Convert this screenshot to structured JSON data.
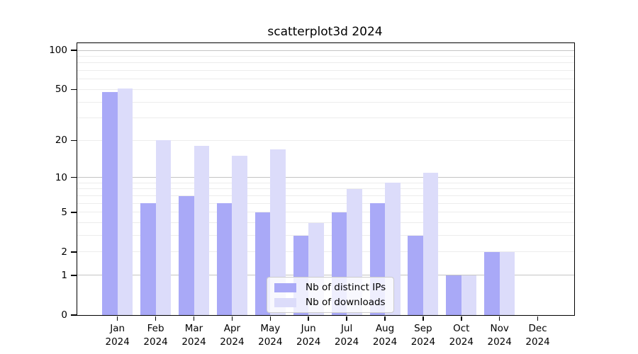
{
  "chart_data": {
    "type": "bar",
    "title": "scatterplot3d 2024",
    "categories": [
      "Jan",
      "Feb",
      "Mar",
      "Apr",
      "May",
      "Jun",
      "Jul",
      "Aug",
      "Sep",
      "Oct",
      "Nov",
      "Dec"
    ],
    "category_year": "2024",
    "series": [
      {
        "name": "Nb of distinct IPs",
        "color": "#a9a9f7",
        "values": [
          48,
          6,
          7,
          6,
          5,
          3,
          5,
          6,
          3,
          1,
          2,
          0
        ]
      },
      {
        "name": "Nb of downloads",
        "color": "#dcdcfa",
        "values": [
          51,
          20,
          18,
          15,
          17,
          4,
          8,
          9,
          11,
          1,
          2,
          0
        ]
      }
    ],
    "yscale": "log10(1+v)",
    "ylim": [
      0,
      113
    ],
    "yticks": [
      {
        "value": 100,
        "label": "100"
      },
      {
        "value": 50,
        "label": "50"
      },
      {
        "value": 20,
        "label": "20"
      },
      {
        "value": 10,
        "label": "10"
      },
      {
        "value": 5,
        "label": "5"
      },
      {
        "value": 2,
        "label": "2"
      },
      {
        "value": 1,
        "label": "1"
      },
      {
        "value": 0,
        "label": "0"
      }
    ],
    "minor_gridline_values": [
      2,
      3,
      4,
      5,
      6,
      7,
      8,
      9,
      20,
      30,
      40,
      50,
      60,
      70,
      80,
      90
    ],
    "decade_gridline_values": [
      1,
      10,
      100
    ],
    "grid": true,
    "legend": {
      "position": "lower-center",
      "entries": [
        "Nb of distinct IPs",
        "Nb of downloads"
      ]
    },
    "colors": {
      "minor_gridline": "#ececec",
      "decade_gridline": "#c4c4c4",
      "frame": "#000000",
      "text": "#000000",
      "legend_border": "#cccccc",
      "legend_bg": "rgba(255,255,255,0.8)"
    }
  }
}
